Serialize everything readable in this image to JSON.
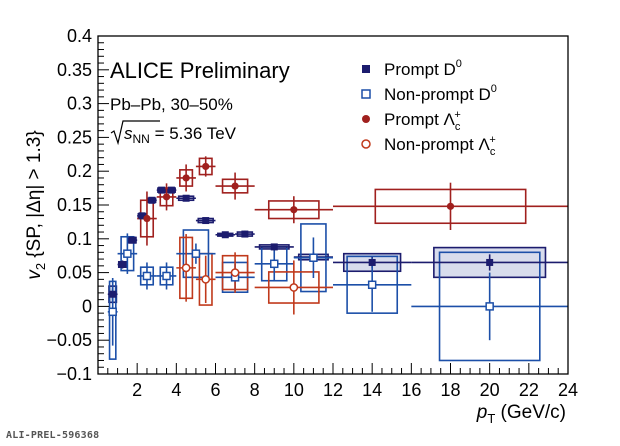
{
  "chart_data": {
    "type": "scatter",
    "xlabel": {
      "main": "p",
      "sub": "T",
      "unit": " (GeV/c)"
    },
    "ylabel": {
      "pre": "v",
      "sub": "2",
      "post": " {SP, |Δη| > 1.3}"
    },
    "xlim": [
      0,
      24
    ],
    "ylim": [
      -0.1,
      0.4
    ],
    "xticks": [
      2,
      4,
      6,
      8,
      10,
      12,
      14,
      16,
      18,
      20,
      22,
      24
    ],
    "yticks": [
      -0.1,
      -0.05,
      0,
      0.05,
      0.1,
      0.15,
      0.2,
      0.25,
      0.3,
      0.35,
      0.4
    ],
    "yticklabels": [
      "−0.1",
      "−0.05",
      "0",
      "0.05",
      "0.1",
      "0.15",
      "0.2",
      "0.25",
      "0.3",
      "0.35",
      "0.4"
    ],
    "grid": false,
    "legend_position": "top-right",
    "annotations": {
      "experiment": "ALICE Preliminary",
      "system": "Pb–Pb, 30–50%",
      "energy_sym": "s",
      "energy_sub": "NN",
      "energy_val": " = 5.36 TeV"
    },
    "series": [
      {
        "name": "Prompt D0",
        "label_main": "Prompt D",
        "label_sup": "0",
        "label_sub": "",
        "color": "#1c1c6e",
        "marker": "filled-square",
        "box_fill": "#b8bfdc",
        "points": [
          {
            "x": 0.75,
            "y": 0.018,
            "xlo": 0.5,
            "xhi": 1.0,
            "stat": 0.008,
            "syslo": 0.012,
            "syshi": 0.012
          },
          {
            "x": 1.25,
            "y": 0.062,
            "xlo": 1.0,
            "xhi": 1.5,
            "stat": 0.006,
            "syslo": 0.004,
            "syshi": 0.004
          },
          {
            "x": 1.75,
            "y": 0.098,
            "xlo": 1.5,
            "xhi": 2.0,
            "stat": 0.005,
            "syslo": 0.004,
            "syshi": 0.004
          },
          {
            "x": 2.25,
            "y": 0.134,
            "xlo": 2.0,
            "xhi": 2.5,
            "stat": 0.004,
            "syslo": 0.003,
            "syshi": 0.003
          },
          {
            "x": 2.75,
            "y": 0.157,
            "xlo": 2.5,
            "xhi": 3.0,
            "stat": 0.004,
            "syslo": 0.003,
            "syshi": 0.003
          },
          {
            "x": 3.25,
            "y": 0.172,
            "xlo": 3.0,
            "xhi": 3.5,
            "stat": 0.004,
            "syslo": 0.003,
            "syshi": 0.003
          },
          {
            "x": 3.75,
            "y": 0.172,
            "xlo": 3.5,
            "xhi": 4.0,
            "stat": 0.004,
            "syslo": 0.003,
            "syshi": 0.003
          },
          {
            "x": 4.5,
            "y": 0.16,
            "xlo": 4.0,
            "xhi": 5.0,
            "stat": 0.003,
            "syslo": 0.003,
            "syshi": 0.003
          },
          {
            "x": 5.5,
            "y": 0.127,
            "xlo": 5.0,
            "xhi": 6.0,
            "stat": 0.004,
            "syslo": 0.003,
            "syshi": 0.003
          },
          {
            "x": 6.5,
            "y": 0.106,
            "xlo": 6.0,
            "xhi": 7.0,
            "stat": 0.004,
            "syslo": 0.002,
            "syshi": 0.002
          },
          {
            "x": 7.5,
            "y": 0.107,
            "xlo": 7.0,
            "xhi": 8.0,
            "stat": 0.005,
            "syslo": 0.003,
            "syshi": 0.003
          },
          {
            "x": 9.0,
            "y": 0.088,
            "xlo": 8.0,
            "xhi": 10.0,
            "stat": 0.005,
            "syslo": 0.003,
            "syshi": 0.003
          },
          {
            "x": 11.0,
            "y": 0.073,
            "xlo": 10.0,
            "xhi": 12.0,
            "stat": 0.007,
            "syslo": 0.004,
            "syshi": 0.004
          },
          {
            "x": 14.0,
            "y": 0.065,
            "xlo": 12.0,
            "xhi": 16.0,
            "stat": 0.008,
            "syslo": 0.013,
            "syshi": 0.013
          },
          {
            "x": 20.0,
            "y": 0.065,
            "xlo": 16.0,
            "xhi": 24.0,
            "stat": 0.012,
            "syslo": 0.022,
            "syshi": 0.022
          }
        ]
      },
      {
        "name": "Non-prompt D0",
        "label_main": "Non-prompt D",
        "label_sup": "0",
        "label_sub": "",
        "color": "#1c4fa8",
        "marker": "open-square",
        "box_fill": "none",
        "points": [
          {
            "x": 0.75,
            "y": -0.008,
            "xlo": 0.5,
            "xhi": 1.0,
            "stat": 0.05,
            "syslo": 0.07,
            "syshi": 0.045
          },
          {
            "x": 1.5,
            "y": 0.078,
            "xlo": 1.0,
            "xhi": 2.0,
            "stat": 0.03,
            "syslo": 0.025,
            "syshi": 0.025
          },
          {
            "x": 2.5,
            "y": 0.045,
            "xlo": 2.0,
            "xhi": 3.0,
            "stat": 0.02,
            "syslo": 0.013,
            "syshi": 0.013
          },
          {
            "x": 3.5,
            "y": 0.045,
            "xlo": 3.0,
            "xhi": 4.0,
            "stat": 0.02,
            "syslo": 0.013,
            "syshi": 0.013
          },
          {
            "x": 5.0,
            "y": 0.078,
            "xlo": 4.0,
            "xhi": 6.0,
            "stat": 0.015,
            "syslo": 0.035,
            "syshi": 0.035
          },
          {
            "x": 7.0,
            "y": 0.043,
            "xlo": 6.0,
            "xhi": 8.0,
            "stat": 0.02,
            "syslo": 0.022,
            "syshi": 0.022
          },
          {
            "x": 9.0,
            "y": 0.063,
            "xlo": 8.0,
            "xhi": 10.0,
            "stat": 0.025,
            "syslo": 0.025,
            "syshi": 0.025
          },
          {
            "x": 11.0,
            "y": 0.072,
            "xlo": 10.0,
            "xhi": 12.0,
            "stat": 0.03,
            "syslo": 0.05,
            "syshi": 0.05
          },
          {
            "x": 14.0,
            "y": 0.032,
            "xlo": 12.0,
            "xhi": 16.0,
            "stat": 0.04,
            "syslo": 0.042,
            "syshi": 0.042
          },
          {
            "x": 20.0,
            "y": 0.0,
            "xlo": 16.0,
            "xhi": 24.0,
            "stat": 0.05,
            "syslo": 0.08,
            "syshi": 0.08
          }
        ]
      },
      {
        "name": "Prompt Λc+",
        "label_main": "Prompt Λ",
        "label_sup": "+",
        "label_sub": "c",
        "color": "#a0201e",
        "marker": "filled-circle",
        "box_fill": "none",
        "points": [
          {
            "x": 2.5,
            "y": 0.13,
            "xlo": 2.0,
            "xhi": 3.0,
            "stat": 0.04,
            "syslo": 0.027,
            "syshi": 0.027
          },
          {
            "x": 3.5,
            "y": 0.162,
            "xlo": 3.0,
            "xhi": 4.0,
            "stat": 0.02,
            "syslo": 0.013,
            "syshi": 0.013
          },
          {
            "x": 4.5,
            "y": 0.19,
            "xlo": 4.0,
            "xhi": 5.0,
            "stat": 0.02,
            "syslo": 0.012,
            "syshi": 0.012
          },
          {
            "x": 5.5,
            "y": 0.207,
            "xlo": 5.0,
            "xhi": 6.0,
            "stat": 0.015,
            "syslo": 0.012,
            "syshi": 0.012
          },
          {
            "x": 7.0,
            "y": 0.178,
            "xlo": 6.0,
            "xhi": 8.0,
            "stat": 0.02,
            "syslo": 0.01,
            "syshi": 0.01
          },
          {
            "x": 10.0,
            "y": 0.143,
            "xlo": 8.0,
            "xhi": 12.0,
            "stat": 0.02,
            "syslo": 0.013,
            "syshi": 0.013
          },
          {
            "x": 18.0,
            "y": 0.148,
            "xlo": 12.0,
            "xhi": 24.0,
            "stat": 0.035,
            "syslo": 0.025,
            "syshi": 0.025
          }
        ]
      },
      {
        "name": "Non-prompt Λc+",
        "label_main": "Non-prompt Λ",
        "label_sup": "+",
        "label_sub": "c",
        "color": "#c0391b",
        "marker": "open-circle",
        "box_fill": "none",
        "points": [
          {
            "x": 4.5,
            "y": 0.057,
            "xlo": 4.0,
            "xhi": 5.0,
            "stat": 0.05,
            "syslo": 0.045,
            "syshi": 0.045
          },
          {
            "x": 5.5,
            "y": 0.04,
            "xlo": 5.0,
            "xhi": 6.0,
            "stat": 0.035,
            "syslo": 0.038,
            "syshi": 0.038
          },
          {
            "x": 7.0,
            "y": 0.05,
            "xlo": 6.0,
            "xhi": 8.0,
            "stat": 0.03,
            "syslo": 0.025,
            "syshi": 0.025
          },
          {
            "x": 10.0,
            "y": 0.028,
            "xlo": 8.0,
            "xhi": 12.0,
            "stat": 0.04,
            "syslo": 0.023,
            "syshi": 0.023
          }
        ]
      }
    ]
  },
  "footer": {
    "preliminary_id": "ALI-PREL-596368"
  }
}
